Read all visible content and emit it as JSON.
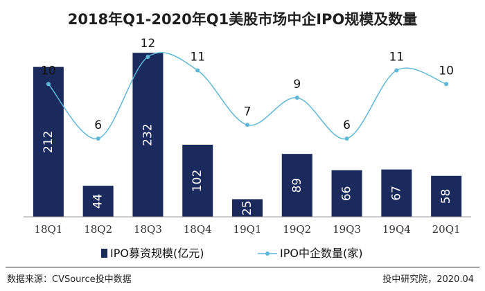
{
  "chart_data": {
    "type": "bar+line",
    "title": "2018年Q1-2020年Q1美股市场中企IPO规模及数量",
    "categories": [
      "18Q1",
      "18Q2",
      "18Q3",
      "18Q4",
      "19Q1",
      "19Q2",
      "19Q3",
      "19Q4",
      "20Q1"
    ],
    "series": [
      {
        "name": "IPO募资规模(亿元)",
        "kind": "bar",
        "color": "#1b2a5c",
        "values": [
          212,
          44,
          232,
          102,
          25,
          89,
          66,
          67,
          58
        ]
      },
      {
        "name": "IPO中企数量(家)",
        "kind": "line",
        "color": "#5fb8d8",
        "values": [
          10,
          6,
          12,
          11,
          7,
          9,
          6,
          11,
          10
        ]
      }
    ],
    "bar_ylim": [
      0,
      240
    ],
    "line_ylim": [
      0,
      14
    ]
  },
  "footer": {
    "source": "数据来源：CVSource投中数据",
    "credit": "投中研究院，2020.04"
  }
}
